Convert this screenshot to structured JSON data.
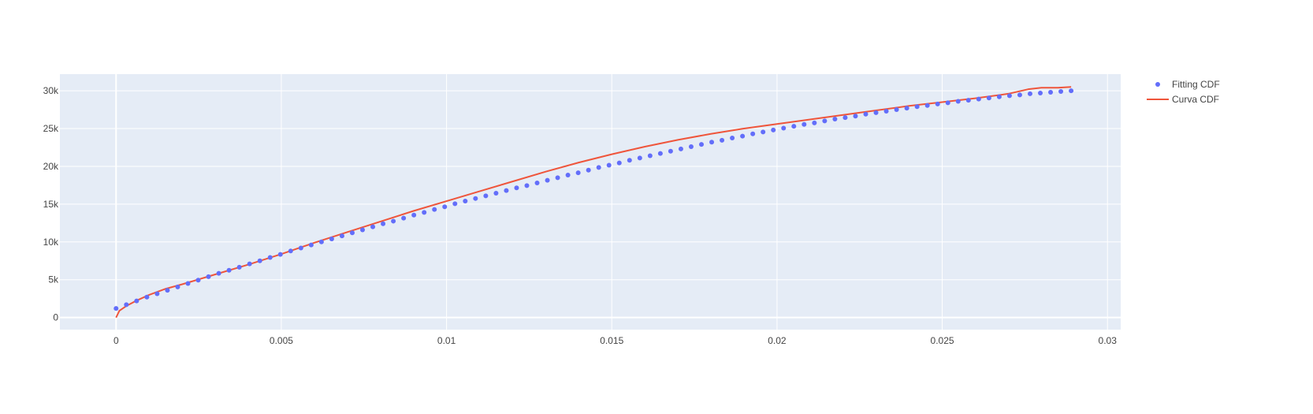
{
  "chart_data": {
    "type": "scatter",
    "title": "",
    "xlabel": "",
    "ylabel": "",
    "xlim": [
      -0.0017,
      0.0304
    ],
    "ylim": [
      -1600,
      32200
    ],
    "x_ticks": [
      {
        "value": 0,
        "label": "0"
      },
      {
        "value": 0.005,
        "label": "0.005"
      },
      {
        "value": 0.01,
        "label": "0.01"
      },
      {
        "value": 0.015,
        "label": "0.015"
      },
      {
        "value": 0.02,
        "label": "0.02"
      },
      {
        "value": 0.025,
        "label": "0.025"
      },
      {
        "value": 0.03,
        "label": "0.03"
      }
    ],
    "y_ticks": [
      {
        "value": 0,
        "label": "0"
      },
      {
        "value": 5000,
        "label": "5k"
      },
      {
        "value": 10000,
        "label": "10k"
      },
      {
        "value": 15000,
        "label": "15k"
      },
      {
        "value": 20000,
        "label": "20k"
      },
      {
        "value": 25000,
        "label": "25k"
      },
      {
        "value": 30000,
        "label": "30k"
      }
    ],
    "grid": true,
    "legend_position": "top-right",
    "colors": {
      "plot_background": "#e5ecf6",
      "grid": "#ffffff",
      "points": "#636efa",
      "curve": "#ef553b"
    },
    "series": [
      {
        "name": "Fitting CDF",
        "type": "scatter",
        "x_start": 0,
        "x_end": 0.0289,
        "count": 94,
        "y": [
          1200,
          1700,
          2200,
          2700,
          3150,
          3600,
          4050,
          4500,
          4950,
          5400,
          5850,
          6250,
          6650,
          7100,
          7500,
          7950,
          8350,
          8800,
          9200,
          9600,
          10000,
          10400,
          10800,
          11200,
          11600,
          12000,
          12400,
          12750,
          13150,
          13550,
          13900,
          14300,
          14650,
          15050,
          15400,
          15750,
          16100,
          16450,
          16800,
          17150,
          17450,
          17800,
          18150,
          18500,
          18850,
          19150,
          19500,
          19850,
          20150,
          20450,
          20800,
          21100,
          21400,
          21700,
          22000,
          22300,
          22600,
          22900,
          23200,
          23450,
          23750,
          24000,
          24300,
          24550,
          24800,
          25050,
          25300,
          25550,
          25750,
          26000,
          26250,
          26450,
          26650,
          26900,
          27100,
          27300,
          27500,
          27700,
          27900,
          28050,
          28250,
          28400,
          28600,
          28750,
          28900,
          29050,
          29200,
          29350,
          29450,
          29600,
          29700,
          29800,
          29900,
          30000
        ]
      },
      {
        "name": "Curva CDF",
        "type": "line",
        "x": [
          0,
          0.0001,
          0.0003,
          0.0006,
          0.001,
          0.0015,
          0.002,
          0.003,
          0.004,
          0.005,
          0.006,
          0.007,
          0.008,
          0.009,
          0.01,
          0.011,
          0.012,
          0.013,
          0.014,
          0.015,
          0.016,
          0.017,
          0.018,
          0.019,
          0.02,
          0.021,
          0.022,
          0.023,
          0.024,
          0.025,
          0.026,
          0.027,
          0.0276,
          0.028,
          0.0285,
          0.0289
        ],
        "y": [
          0,
          900,
          1500,
          2200,
          3000,
          3800,
          4400,
          5700,
          7000,
          8400,
          9900,
          11300,
          12700,
          14100,
          15400,
          16700,
          18000,
          19300,
          20500,
          21600,
          22600,
          23500,
          24300,
          25000,
          25600,
          26200,
          26800,
          27400,
          28000,
          28500,
          29000,
          29600,
          30200,
          30400,
          30400,
          30500
        ]
      }
    ]
  }
}
